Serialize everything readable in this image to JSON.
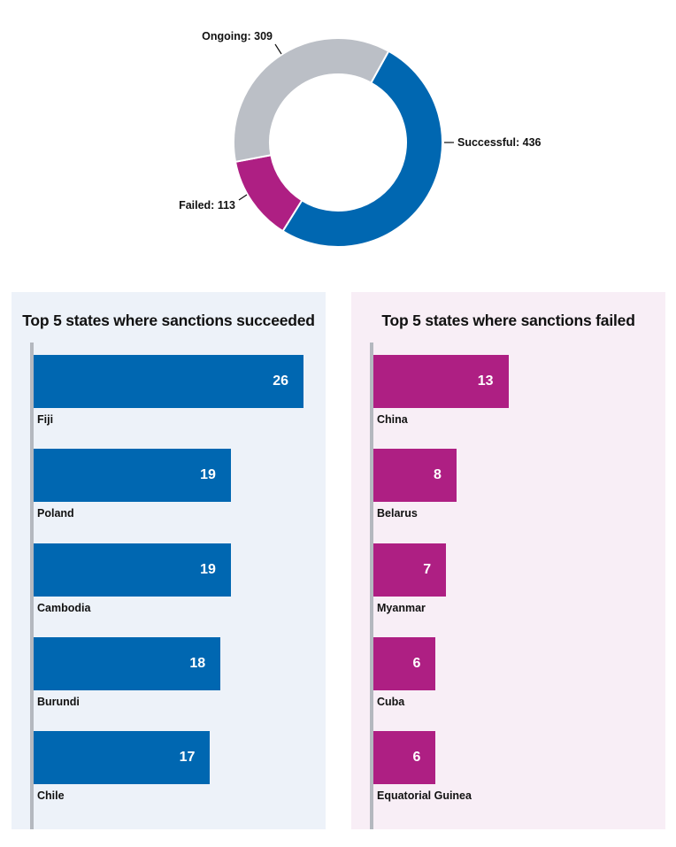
{
  "chart_data": [
    {
      "type": "pie",
      "donut": true,
      "slices": [
        {
          "label": "Successful: 436",
          "name": "Successful",
          "value": 436,
          "color": "#0067b1"
        },
        {
          "label": "Failed: 113",
          "name": "Failed",
          "value": 113,
          "color": "#ae1f83"
        },
        {
          "label": "Ongoing: 309",
          "name": "Ongoing",
          "value": 309,
          "color": "#bbbfc6"
        }
      ]
    },
    {
      "type": "bar",
      "orientation": "horizontal",
      "title": "Top 5 states where sanctions succeeded",
      "categories": [
        "Fiji",
        "Poland",
        "Cambodia",
        "Burundi",
        "Chile"
      ],
      "values": [
        26,
        19,
        19,
        18,
        17
      ],
      "color": "#0067b1",
      "background": "#edf2f9"
    },
    {
      "type": "bar",
      "orientation": "horizontal",
      "title": "Top 5 states where sanctions failed",
      "categories": [
        "China",
        "Belarus",
        "Myanmar",
        "Cuba",
        "Equatorial Guinea"
      ],
      "values": [
        13,
        8,
        7,
        6,
        6
      ],
      "color": "#ae1f83",
      "background": "#f8eef6"
    }
  ]
}
